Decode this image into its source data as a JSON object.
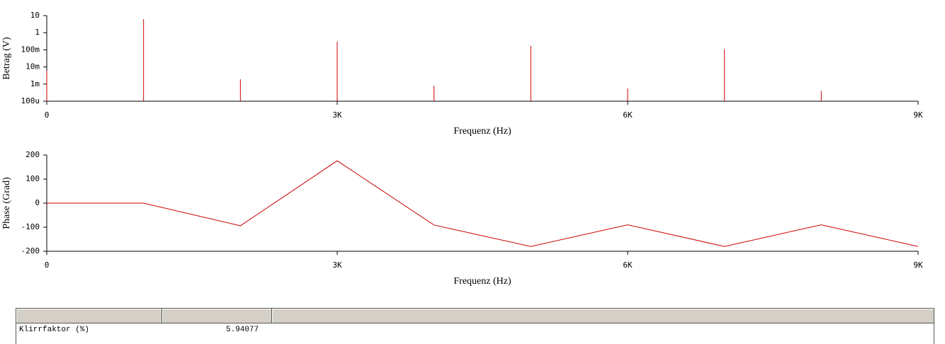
{
  "chart_data": [
    {
      "type": "stem",
      "x_label": "Frequenz (Hz)",
      "y_label": "Betrag (V)",
      "color": "#cc0000",
      "log_y": true,
      "grid": false,
      "x": [
        0,
        1000,
        2000,
        3000,
        4000,
        5000,
        6000,
        7000,
        8000
      ],
      "values": [
        0.006,
        6.2,
        0.0019,
        0.3,
        0.0008,
        0.17,
        0.00055,
        0.11,
        0.0004
      ],
      "xlim": [
        0,
        9000
      ],
      "xticks": [
        0,
        {
          "value": 3000,
          "label": "3K"
        },
        {
          "value": 6000,
          "label": "6K"
        },
        {
          "value": 9000,
          "label": "9K"
        }
      ],
      "ylim": [
        0.0001,
        10
      ],
      "yticks": [
        {
          "value": 0.0001,
          "label": "100u"
        },
        {
          "value": 0.001,
          "label": "1m"
        },
        {
          "value": 0.01,
          "label": "10m"
        },
        {
          "value": 0.1,
          "label": "100m"
        },
        1,
        10
      ]
    },
    {
      "type": "line",
      "x_label": "Frequenz (Hz)",
      "y_label": "Phase (Grad)",
      "color": "#cc0000",
      "log_y": false,
      "grid": false,
      "x": [
        0,
        1000,
        2000,
        3000,
        4000,
        5000,
        6000,
        7000,
        8000,
        9000
      ],
      "values": [
        0,
        0,
        -94,
        176,
        -91,
        -180,
        -90,
        -180,
        -90,
        -180
      ],
      "xlim": [
        0,
        9000
      ],
      "xticks": [
        0,
        {
          "value": 3000,
          "label": "3K"
        },
        {
          "value": 6000,
          "label": "6K"
        },
        {
          "value": 9000,
          "label": "9K"
        }
      ],
      "ylim": [
        -200,
        200
      ],
      "yticks": [
        -200,
        -100,
        0,
        100,
        200
      ]
    }
  ],
  "table": {
    "rows": [
      [
        "Klirrfaktor (%)",
        "5.94077"
      ]
    ]
  }
}
